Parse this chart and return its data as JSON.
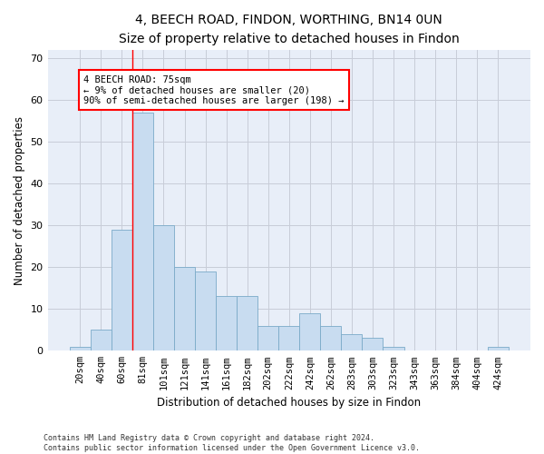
{
  "title1": "4, BEECH ROAD, FINDON, WORTHING, BN14 0UN",
  "title2": "Size of property relative to detached houses in Findon",
  "xlabel": "Distribution of detached houses by size in Findon",
  "ylabel": "Number of detached properties",
  "bar_labels": [
    "20sqm",
    "40sqm",
    "60sqm",
    "81sqm",
    "101sqm",
    "121sqm",
    "141sqm",
    "161sqm",
    "182sqm",
    "202sqm",
    "222sqm",
    "242sqm",
    "262sqm",
    "283sqm",
    "303sqm",
    "323sqm",
    "343sqm",
    "363sqm",
    "384sqm",
    "404sqm",
    "424sqm"
  ],
  "bar_values": [
    1,
    5,
    29,
    57,
    30,
    20,
    19,
    13,
    13,
    6,
    6,
    9,
    6,
    4,
    3,
    1,
    0,
    0,
    0,
    0,
    1
  ],
  "bar_color": "#c8dcf0",
  "bar_edge_color": "#7aaac8",
  "vline_x": 2.5,
  "annotation_text": "4 BEECH ROAD: 75sqm\n← 9% of detached houses are smaller (20)\n90% of semi-detached houses are larger (198) →",
  "ylim": [
    0,
    72
  ],
  "yticks": [
    0,
    10,
    20,
    30,
    40,
    50,
    60,
    70
  ],
  "footer1": "Contains HM Land Registry data © Crown copyright and database right 2024.",
  "footer2": "Contains public sector information licensed under the Open Government Licence v3.0.",
  "bg_color": "#e8eef8",
  "grid_color": "#c8ccd8",
  "title1_fontsize": 10,
  "title2_fontsize": 9,
  "xlabel_fontsize": 8.5,
  "ylabel_fontsize": 8.5,
  "tick_fontsize": 7.5,
  "annot_fontsize": 7.5,
  "footer_fontsize": 6
}
